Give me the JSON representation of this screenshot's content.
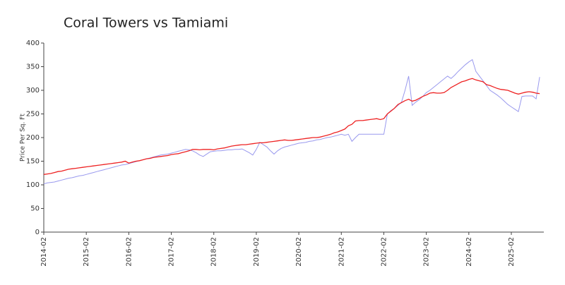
{
  "chart_data": {
    "type": "line",
    "title": "Coral Towers vs Tamiami",
    "ylabel": "Price Per Sq. Ft",
    "x": [
      "2014-02",
      "2014-03",
      "2014-04",
      "2014-05",
      "2014-06",
      "2014-07",
      "2014-08",
      "2014-09",
      "2014-10",
      "2014-11",
      "2014-12",
      "2015-01",
      "2015-02",
      "2015-03",
      "2015-04",
      "2015-05",
      "2015-06",
      "2015-07",
      "2015-08",
      "2015-09",
      "2015-10",
      "2015-11",
      "2015-12",
      "2016-01",
      "2016-02",
      "2016-03",
      "2016-04",
      "2016-05",
      "2016-06",
      "2016-07",
      "2016-08",
      "2016-09",
      "2016-10",
      "2016-11",
      "2016-12",
      "2017-01",
      "2017-02",
      "2017-03",
      "2017-04",
      "2017-05",
      "2017-06",
      "2017-07",
      "2017-08",
      "2017-09",
      "2017-10",
      "2017-11",
      "2017-12",
      "2018-01",
      "2018-02",
      "2018-03",
      "2018-04",
      "2018-05",
      "2018-06",
      "2018-07",
      "2018-08",
      "2018-09",
      "2018-10",
      "2018-11",
      "2018-12",
      "2019-01",
      "2019-02",
      "2019-03",
      "2019-04",
      "2019-05",
      "2019-06",
      "2019-07",
      "2019-08",
      "2019-09",
      "2019-10",
      "2019-11",
      "2019-12",
      "2020-01",
      "2020-02",
      "2020-03",
      "2020-04",
      "2020-05",
      "2020-06",
      "2020-07",
      "2020-08",
      "2020-09",
      "2020-10",
      "2020-11",
      "2020-12",
      "2021-01",
      "2021-02",
      "2021-03",
      "2021-04",
      "2021-05",
      "2021-06",
      "2021-07",
      "2021-08",
      "2021-09",
      "2021-10",
      "2021-11",
      "2021-12",
      "2022-01",
      "2022-02",
      "2022-03",
      "2022-04",
      "2022-05",
      "2022-06",
      "2022-07",
      "2022-08",
      "2022-09",
      "2022-10",
      "2022-11",
      "2022-12",
      "2023-01",
      "2023-02",
      "2023-03",
      "2023-04",
      "2023-05",
      "2023-06",
      "2023-07",
      "2023-08",
      "2023-09",
      "2023-10",
      "2023-11",
      "2023-12",
      "2024-01",
      "2024-02",
      "2024-03",
      "2024-04",
      "2024-05",
      "2024-06",
      "2024-07",
      "2024-08",
      "2024-09",
      "2024-10",
      "2024-11",
      "2024-12",
      "2025-01",
      "2025-02",
      "2025-03",
      "2025-04",
      "2025-05",
      "2025-06",
      "2025-07",
      "2025-08",
      "2025-09",
      "2025-10"
    ],
    "series": [
      {
        "color": "#ee2222",
        "values": [
          122,
          123,
          124,
          126,
          128,
          129,
          131,
          133,
          134,
          135,
          136,
          137,
          138,
          139,
          140,
          141,
          142,
          143,
          144,
          145,
          146,
          147,
          148,
          150,
          146,
          148,
          150,
          151,
          153,
          155,
          156,
          158,
          159,
          160,
          161,
          162,
          164,
          165,
          166,
          168,
          170,
          172,
          175,
          175,
          174,
          175,
          175,
          175,
          174,
          176,
          177,
          178,
          180,
          182,
          183,
          184,
          185,
          185,
          186,
          187,
          188,
          189,
          189,
          190,
          191,
          192,
          193,
          194,
          195,
          194,
          194,
          195,
          196,
          197,
          198,
          199,
          200,
          200,
          201,
          203,
          205,
          207,
          210,
          212,
          215,
          218,
          225,
          228,
          235,
          236,
          236,
          237,
          238,
          239,
          240,
          238,
          240,
          250,
          256,
          262,
          270,
          274,
          278,
          281,
          277,
          279,
          283,
          287,
          290,
          294,
          295,
          294,
          294,
          295,
          300,
          306,
          310,
          314,
          318,
          320,
          323,
          325,
          322,
          320,
          318,
          312,
          310,
          307,
          304,
          302,
          301,
          300,
          297,
          294,
          292,
          294,
          296,
          297,
          296,
          294,
          293
        ]
      },
      {
        "color": "#9999ee",
        "values": [
          102,
          104,
          105,
          106,
          108,
          110,
          112,
          114,
          115,
          117,
          119,
          120,
          122,
          124,
          126,
          128,
          130,
          132,
          134,
          136,
          138,
          140,
          142,
          143,
          145,
          147,
          149,
          151,
          153,
          155,
          157,
          159,
          161,
          163,
          164,
          165,
          167,
          169,
          171,
          173,
          175,
          174,
          172,
          168,
          163,
          160,
          165,
          170,
          171,
          172,
          172,
          173,
          174,
          174,
          175,
          175,
          176,
          172,
          168,
          163,
          175,
          190,
          185,
          180,
          172,
          165,
          172,
          177,
          180,
          182,
          184,
          186,
          188,
          189,
          190,
          192,
          193,
          195,
          196,
          198,
          200,
          201,
          203,
          205,
          207,
          205,
          207,
          192,
          200,
          207,
          207,
          207,
          207,
          207,
          207,
          207,
          207,
          250,
          257,
          262,
          268,
          275,
          300,
          330,
          268,
          275,
          280,
          287,
          295,
          300,
          306,
          312,
          318,
          324,
          330,
          325,
          332,
          340,
          347,
          354,
          360,
          365,
          340,
          330,
          320,
          310,
          300,
          295,
          290,
          284,
          277,
          270,
          265,
          260,
          255,
          287,
          288,
          288,
          288,
          282,
          328
        ]
      }
    ],
    "ylim": [
      0,
      400
    ],
    "yticks": [
      0,
      50,
      100,
      150,
      200,
      250,
      300,
      350,
      400
    ],
    "grid": false
  }
}
